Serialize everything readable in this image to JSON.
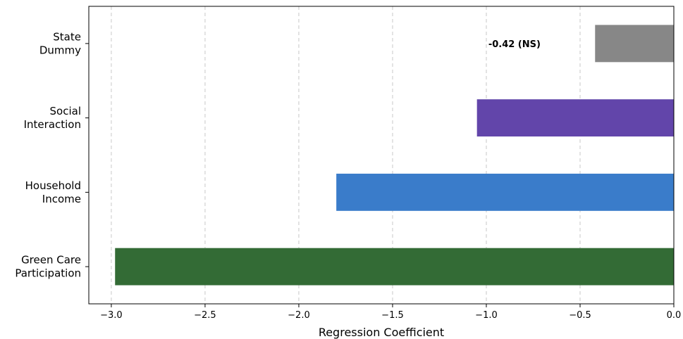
{
  "chart_data": {
    "type": "bar",
    "orientation": "horizontal",
    "categories": [
      [
        "Green Care",
        "Participation"
      ],
      [
        "Household",
        "Income"
      ],
      [
        "Social",
        "Interaction"
      ],
      [
        "State",
        "Dummy"
      ]
    ],
    "values": [
      -2.98,
      -1.8,
      -1.05,
      -0.42
    ],
    "colors": [
      "#336b35",
      "#3a7cca",
      "#6245aa",
      "#878787"
    ],
    "xlabel": "Regression Coefficient",
    "xlim": [
      -3.12,
      0.0
    ],
    "xticks": [
      -3.0,
      -2.5,
      -2.0,
      -1.5,
      -1.0,
      -0.5,
      0.0
    ],
    "xtick_labels": [
      "−3.0",
      "−2.5",
      "−2.0",
      "−1.5",
      "−1.0",
      "−0.5",
      "0.0"
    ],
    "grid": "x-dashed",
    "annotations": [
      {
        "category_index": 3,
        "x": -0.85,
        "text": "-0.42 (NS)"
      }
    ]
  }
}
